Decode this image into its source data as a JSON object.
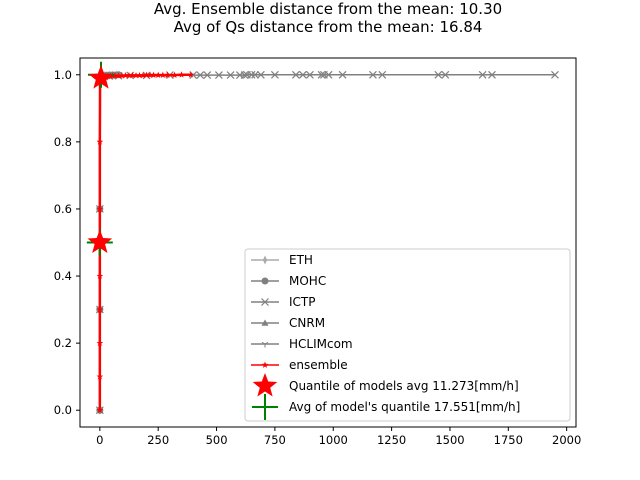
{
  "chart_data": {
    "type": "line",
    "title_lines": [
      "Avg. Ensemble distance from the mean: 10.30",
      "Avg of Qs distance from the mean: 16.84"
    ],
    "xlim": [
      -85,
      2040
    ],
    "ylim": [
      -0.05,
      1.05
    ],
    "x_ticks": [
      0,
      250,
      500,
      750,
      1000,
      1250,
      1500,
      1750,
      2000
    ],
    "y_ticks": [
      0.0,
      0.2,
      0.4,
      0.6,
      0.8,
      1.0
    ],
    "grid": false,
    "legend_position": "lower-right",
    "series": [
      {
        "name": "ETH",
        "color": "#aaaaaa",
        "marker": "thin_diamond",
        "x": [
          0,
          0,
          0,
          1,
          2,
          4,
          6,
          10,
          15,
          22,
          30,
          40,
          55,
          70
        ],
        "y": [
          0.0,
          0.3,
          0.6,
          0.98,
          0.99,
          0.993,
          0.995,
          0.996,
          0.997,
          0.998,
          0.998,
          0.999,
          0.999,
          1.0
        ]
      },
      {
        "name": "MOHC",
        "color": "#808080",
        "marker": "circle",
        "x": [
          0,
          0,
          0,
          1,
          2,
          4,
          7,
          12,
          18,
          26,
          36,
          48,
          62,
          80
        ],
        "y": [
          0.0,
          0.3,
          0.6,
          0.98,
          0.99,
          0.993,
          0.995,
          0.996,
          0.997,
          0.998,
          0.998,
          0.999,
          0.999,
          1.0
        ]
      },
      {
        "name": "ICTP",
        "color": "#808080",
        "marker": "x",
        "x": [
          0,
          0,
          0,
          2,
          5,
          10,
          20,
          40,
          80,
          130,
          200,
          300,
          400,
          430,
          460,
          510,
          560,
          600,
          620,
          630,
          650,
          665,
          690,
          750,
          840,
          870,
          900,
          950,
          960,
          980,
          1040,
          1170,
          1210,
          1450,
          1480,
          1640,
          1680,
          1950
        ],
        "y": [
          0.0,
          0.3,
          0.6,
          0.98,
          0.99,
          0.993,
          0.995,
          0.996,
          0.997,
          0.998,
          0.998,
          0.999,
          0.999,
          0.999,
          0.999,
          0.999,
          0.999,
          0.999,
          0.999,
          1.0,
          1.0,
          1.0,
          1.0,
          1.0,
          1.0,
          1.0,
          1.0,
          1.0,
          1.0,
          1.0,
          1.0,
          1.0,
          1.0,
          1.0,
          1.0,
          1.0,
          1.0,
          1.0
        ]
      },
      {
        "name": "CNRM",
        "color": "#808080",
        "marker": "triangle",
        "x": [
          0,
          0,
          0,
          1,
          3,
          5,
          8,
          13,
          20,
          28,
          38
        ],
        "y": [
          0.0,
          0.3,
          0.6,
          0.98,
          0.99,
          0.993,
          0.995,
          0.996,
          0.997,
          0.998,
          1.0
        ]
      },
      {
        "name": "HCLIMcom",
        "color": "#808080",
        "marker": "tri_down",
        "x": [
          0,
          0,
          0,
          1,
          3,
          6,
          10,
          16,
          24,
          34,
          46,
          60
        ],
        "y": [
          0.0,
          0.3,
          0.6,
          0.98,
          0.99,
          0.993,
          0.995,
          0.996,
          0.997,
          0.998,
          0.999,
          1.0
        ]
      },
      {
        "name": "ensemble",
        "color": "#ff0000",
        "marker": "star",
        "x": [
          0,
          0,
          0,
          0,
          0,
          0,
          0,
          0,
          1,
          2,
          3,
          5,
          8,
          12,
          18,
          25,
          35,
          45,
          55,
          65,
          80,
          95,
          110,
          125,
          140,
          155,
          170,
          185,
          200,
          215,
          230,
          250,
          270,
          290,
          320,
          350,
          390
        ],
        "y": [
          0.0,
          0.1,
          0.2,
          0.3,
          0.4,
          0.5,
          0.6,
          0.8,
          0.98,
          0.985,
          0.99,
          0.992,
          0.993,
          0.994,
          0.995,
          0.995,
          0.996,
          0.996,
          0.997,
          0.997,
          0.997,
          0.997,
          0.998,
          0.998,
          0.998,
          0.998,
          0.998,
          0.998,
          0.999,
          0.999,
          0.999,
          0.999,
          0.999,
          0.999,
          0.999,
          1.0,
          1.0
        ]
      }
    ],
    "quantile_models_avg": {
      "label": "Quantile of models avg   11.273[mm/h]",
      "color": "#ff0000",
      "marker": "big_star",
      "points": [
        [
          0,
          0.5
        ],
        [
          5,
          0.99
        ]
      ]
    },
    "avg_models_quantile": {
      "label": "Avg of model's quantile 17.551[mm/h]",
      "color": "#008000",
      "marker": "plus",
      "points": [
        [
          0,
          0.5
        ],
        [
          5,
          1.0
        ]
      ]
    }
  }
}
